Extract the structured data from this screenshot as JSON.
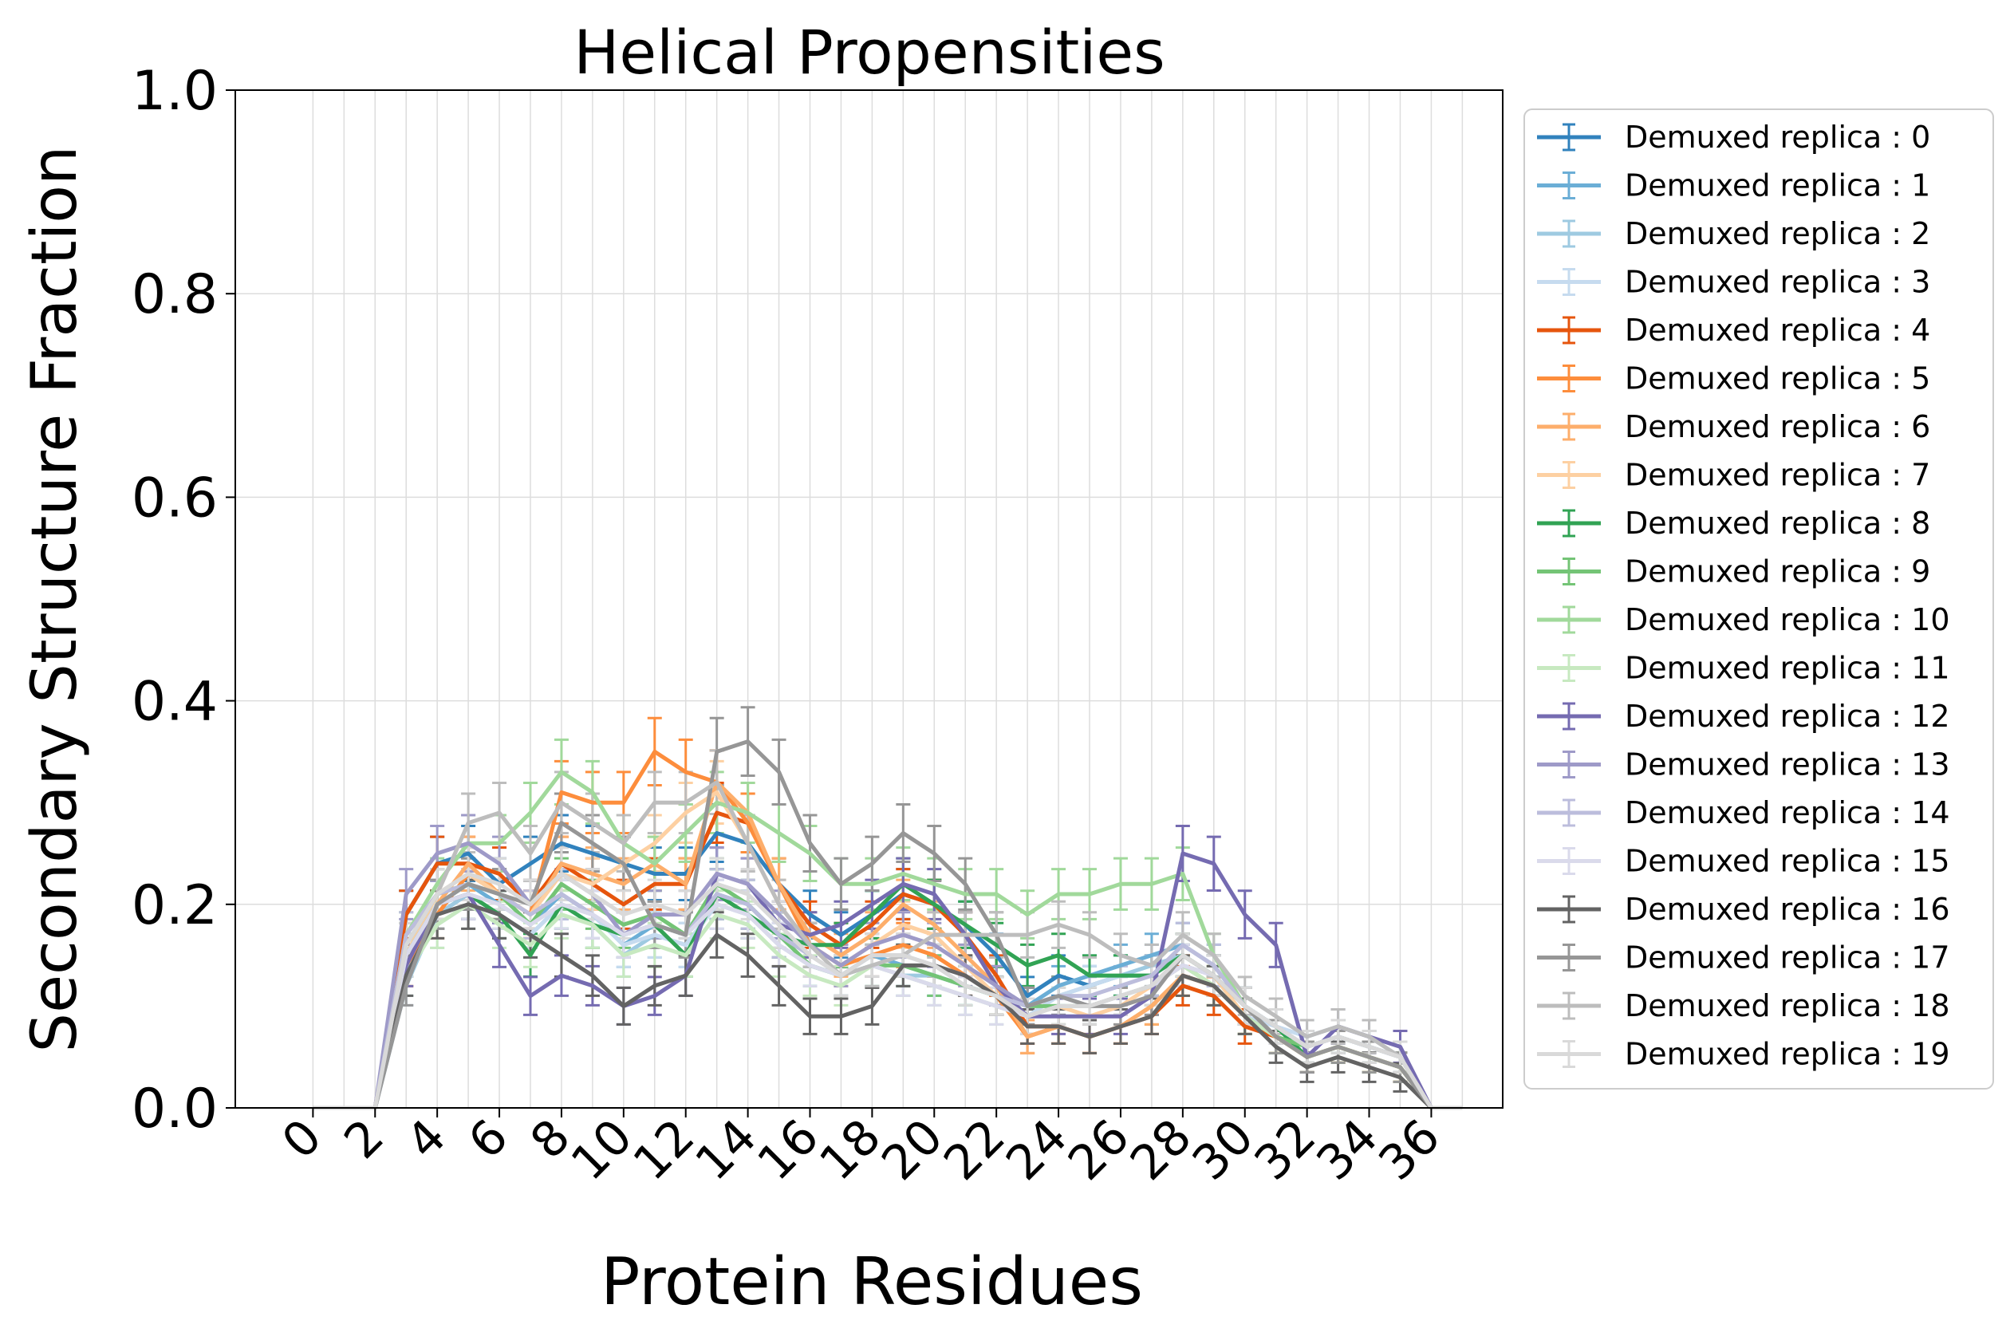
{
  "chart_data": {
    "type": "line",
    "title": "Helical Propensities",
    "xlabel": "Protein Residues",
    "ylabel": "Secondary Structure Fraction",
    "xlim": [
      -2.5,
      38.3
    ],
    "ylim": [
      0.0,
      1.0
    ],
    "x_ticks": [
      "0",
      "2",
      "4",
      "6",
      "8",
      "10",
      "12",
      "14",
      "16",
      "18",
      "20",
      "22",
      "24",
      "26",
      "28",
      "30",
      "32",
      "34",
      "36"
    ],
    "y_ticks": [
      "0.0",
      "0.2",
      "0.4",
      "0.6",
      "0.8",
      "1.0"
    ],
    "grid": true,
    "error_bars": true,
    "legend_position": "outside-right",
    "x": [
      0,
      1,
      2,
      3,
      4,
      5,
      6,
      7,
      8,
      9,
      10,
      11,
      12,
      13,
      14,
      15,
      16,
      17,
      18,
      19,
      20,
      21,
      22,
      23,
      24,
      25,
      26,
      27,
      28,
      29,
      30,
      31,
      32,
      33,
      34,
      35,
      36,
      37
    ],
    "series": [
      {
        "name": "Demuxed replica : 0",
        "color": "#3182bd",
        "values": [
          0,
          0,
          0,
          0.19,
          0.24,
          0.25,
          0.22,
          0.24,
          0.26,
          0.25,
          0.24,
          0.23,
          0.23,
          0.27,
          0.26,
          0.22,
          0.19,
          0.17,
          0.19,
          0.21,
          0.2,
          0.18,
          0.15,
          0.11,
          0.13,
          0.12,
          0.13,
          0.13,
          0.15,
          0.13,
          0.1,
          0.08,
          0.06,
          0.07,
          0.06,
          0.05,
          0,
          0
        ]
      },
      {
        "name": "Demuxed replica : 1",
        "color": "#6baed6",
        "values": [
          0,
          0,
          0,
          0.13,
          0.2,
          0.22,
          0.2,
          0.18,
          0.21,
          0.19,
          0.16,
          0.18,
          0.17,
          0.21,
          0.2,
          0.17,
          0.14,
          0.13,
          0.15,
          0.14,
          0.13,
          0.12,
          0.11,
          0.1,
          0.12,
          0.13,
          0.14,
          0.15,
          0.16,
          0.14,
          0.1,
          0.08,
          0.06,
          0.07,
          0.06,
          0.05,
          0,
          0
        ]
      },
      {
        "name": "Demuxed replica : 2",
        "color": "#9ecae1",
        "values": [
          0,
          0,
          0,
          0.12,
          0.19,
          0.21,
          0.19,
          0.17,
          0.2,
          0.18,
          0.15,
          0.17,
          0.16,
          0.2,
          0.19,
          0.16,
          0.14,
          0.13,
          0.14,
          0.13,
          0.13,
          0.12,
          0.11,
          0.1,
          0.11,
          0.12,
          0.13,
          0.14,
          0.15,
          0.13,
          0.09,
          0.07,
          0.06,
          0.07,
          0.06,
          0.05,
          0,
          0
        ]
      },
      {
        "name": "Demuxed replica : 3",
        "color": "#c6dbef",
        "values": [
          0,
          0,
          0,
          0.14,
          0.18,
          0.2,
          0.19,
          0.17,
          0.2,
          0.19,
          0.16,
          0.17,
          0.16,
          0.2,
          0.19,
          0.16,
          0.14,
          0.13,
          0.14,
          0.13,
          0.12,
          0.11,
          0.1,
          0.09,
          0.11,
          0.12,
          0.13,
          0.13,
          0.15,
          0.13,
          0.09,
          0.08,
          0.07,
          0.08,
          0.07,
          0.05,
          0,
          0
        ]
      },
      {
        "name": "Demuxed replica : 4",
        "color": "#e6550d",
        "values": [
          0,
          0,
          0,
          0.19,
          0.24,
          0.24,
          0.23,
          0.2,
          0.24,
          0.22,
          0.2,
          0.22,
          0.22,
          0.29,
          0.28,
          0.22,
          0.18,
          0.16,
          0.18,
          0.21,
          0.2,
          0.17,
          0.13,
          0.08,
          0.08,
          0.07,
          0.08,
          0.09,
          0.12,
          0.11,
          0.08,
          0.07,
          0.05,
          0.06,
          0.05,
          0.04,
          0,
          0
        ]
      },
      {
        "name": "Demuxed replica : 5",
        "color": "#fd8d3c",
        "values": [
          0,
          0,
          0,
          0.14,
          0.19,
          0.23,
          0.21,
          0.19,
          0.31,
          0.3,
          0.3,
          0.35,
          0.33,
          0.32,
          0.28,
          0.22,
          0.16,
          0.14,
          0.15,
          0.16,
          0.15,
          0.13,
          0.11,
          0.07,
          0.08,
          0.07,
          0.08,
          0.1,
          0.13,
          0.12,
          0.09,
          0.07,
          0.05,
          0.06,
          0.05,
          0.04,
          0,
          0
        ]
      },
      {
        "name": "Demuxed replica : 6",
        "color": "#fdae6b",
        "values": [
          0,
          0,
          0,
          0.14,
          0.2,
          0.24,
          0.21,
          0.19,
          0.24,
          0.23,
          0.22,
          0.24,
          0.22,
          0.32,
          0.29,
          0.22,
          0.17,
          0.15,
          0.17,
          0.2,
          0.18,
          0.15,
          0.12,
          0.07,
          0.08,
          0.07,
          0.08,
          0.1,
          0.13,
          0.12,
          0.09,
          0.07,
          0.05,
          0.06,
          0.05,
          0.04,
          0,
          0
        ]
      },
      {
        "name": "Demuxed replica : 7",
        "color": "#fdd0a2",
        "values": [
          0,
          0,
          0,
          0.15,
          0.21,
          0.23,
          0.21,
          0.19,
          0.23,
          0.22,
          0.24,
          0.26,
          0.29,
          0.31,
          0.26,
          0.2,
          0.16,
          0.14,
          0.16,
          0.18,
          0.17,
          0.14,
          0.11,
          0.09,
          0.1,
          0.09,
          0.1,
          0.12,
          0.15,
          0.13,
          0.09,
          0.07,
          0.06,
          0.07,
          0.06,
          0.05,
          0,
          0
        ]
      },
      {
        "name": "Demuxed replica : 8",
        "color": "#31a354",
        "values": [
          0,
          0,
          0,
          0.15,
          0.2,
          0.21,
          0.19,
          0.15,
          0.2,
          0.18,
          0.17,
          0.18,
          0.15,
          0.21,
          0.19,
          0.17,
          0.16,
          0.16,
          0.19,
          0.22,
          0.2,
          0.18,
          0.16,
          0.14,
          0.15,
          0.13,
          0.13,
          0.13,
          0.15,
          0.13,
          0.1,
          0.08,
          0.05,
          0.06,
          0.05,
          0.04,
          0,
          0
        ]
      },
      {
        "name": "Demuxed replica : 9",
        "color": "#74c476",
        "values": [
          0,
          0,
          0,
          0.16,
          0.21,
          0.22,
          0.21,
          0.18,
          0.22,
          0.2,
          0.18,
          0.19,
          0.17,
          0.22,
          0.2,
          0.17,
          0.14,
          0.13,
          0.14,
          0.14,
          0.13,
          0.12,
          0.11,
          0.1,
          0.1,
          0.1,
          0.11,
          0.12,
          0.14,
          0.12,
          0.09,
          0.07,
          0.06,
          0.07,
          0.06,
          0.05,
          0,
          0
        ]
      },
      {
        "name": "Demuxed replica : 10",
        "color": "#a1d99b",
        "values": [
          0,
          0,
          0,
          0.17,
          0.22,
          0.26,
          0.26,
          0.29,
          0.33,
          0.31,
          0.26,
          0.24,
          0.27,
          0.3,
          0.29,
          0.27,
          0.25,
          0.22,
          0.22,
          0.23,
          0.22,
          0.21,
          0.21,
          0.19,
          0.21,
          0.21,
          0.22,
          0.22,
          0.23,
          0.15,
          0.1,
          0.08,
          0.06,
          0.07,
          0.06,
          0.05,
          0,
          0
        ]
      },
      {
        "name": "Demuxed replica : 11",
        "color": "#c7e9c0",
        "values": [
          0,
          0,
          0,
          0.13,
          0.18,
          0.2,
          0.18,
          0.16,
          0.19,
          0.18,
          0.15,
          0.16,
          0.15,
          0.19,
          0.18,
          0.15,
          0.13,
          0.12,
          0.14,
          0.13,
          0.12,
          0.11,
          0.1,
          0.09,
          0.1,
          0.1,
          0.11,
          0.12,
          0.14,
          0.12,
          0.09,
          0.07,
          0.05,
          0.06,
          0.05,
          0.04,
          0,
          0
        ]
      },
      {
        "name": "Demuxed replica : 12",
        "color": "#756bb1",
        "values": [
          0,
          0,
          0,
          0.14,
          0.2,
          0.21,
          0.16,
          0.11,
          0.13,
          0.12,
          0.1,
          0.11,
          0.13,
          0.23,
          0.22,
          0.18,
          0.17,
          0.18,
          0.2,
          0.22,
          0.21,
          0.17,
          0.12,
          0.09,
          0.09,
          0.09,
          0.09,
          0.11,
          0.25,
          0.24,
          0.19,
          0.16,
          0.05,
          0.08,
          0.07,
          0.06,
          0,
          0
        ]
      },
      {
        "name": "Demuxed replica : 13",
        "color": "#9e9ac8",
        "values": [
          0,
          0,
          0,
          0.21,
          0.25,
          0.26,
          0.24,
          0.2,
          0.23,
          0.21,
          0.17,
          0.19,
          0.19,
          0.23,
          0.22,
          0.19,
          0.16,
          0.14,
          0.16,
          0.17,
          0.16,
          0.14,
          0.12,
          0.1,
          0.11,
          0.1,
          0.11,
          0.12,
          0.14,
          0.13,
          0.1,
          0.08,
          0.06,
          0.07,
          0.06,
          0.05,
          0,
          0
        ]
      },
      {
        "name": "Demuxed replica : 14",
        "color": "#bcbddc",
        "values": [
          0,
          0,
          0,
          0.17,
          0.21,
          0.22,
          0.21,
          0.19,
          0.21,
          0.19,
          0.17,
          0.18,
          0.17,
          0.21,
          0.2,
          0.17,
          0.15,
          0.13,
          0.15,
          0.15,
          0.14,
          0.13,
          0.11,
          0.1,
          0.11,
          0.11,
          0.12,
          0.13,
          0.16,
          0.14,
          0.1,
          0.08,
          0.06,
          0.07,
          0.06,
          0.05,
          0,
          0
        ]
      },
      {
        "name": "Demuxed replica : 15",
        "color": "#dadaeb",
        "values": [
          0,
          0,
          0,
          0.15,
          0.2,
          0.21,
          0.2,
          0.18,
          0.2,
          0.19,
          0.17,
          0.18,
          0.17,
          0.2,
          0.19,
          0.16,
          0.14,
          0.13,
          0.14,
          0.13,
          0.12,
          0.11,
          0.1,
          0.09,
          0.1,
          0.1,
          0.11,
          0.12,
          0.14,
          0.13,
          0.1,
          0.08,
          0.06,
          0.07,
          0.06,
          0.05,
          0,
          0
        ]
      },
      {
        "name": "Demuxed replica : 16",
        "color": "#636363",
        "values": [
          0,
          0,
          0,
          0.13,
          0.19,
          0.2,
          0.19,
          0.17,
          0.15,
          0.13,
          0.1,
          0.12,
          0.13,
          0.17,
          0.15,
          0.12,
          0.09,
          0.09,
          0.1,
          0.14,
          0.14,
          0.13,
          0.11,
          0.08,
          0.08,
          0.07,
          0.08,
          0.09,
          0.13,
          0.12,
          0.09,
          0.06,
          0.04,
          0.05,
          0.04,
          0.03,
          0,
          0
        ]
      },
      {
        "name": "Demuxed replica : 17",
        "color": "#969696",
        "values": [
          0,
          0,
          0,
          0.12,
          0.2,
          0.22,
          0.21,
          0.2,
          0.28,
          0.26,
          0.24,
          0.18,
          0.17,
          0.35,
          0.36,
          0.33,
          0.26,
          0.22,
          0.24,
          0.27,
          0.25,
          0.22,
          0.17,
          0.1,
          0.11,
          0.1,
          0.1,
          0.11,
          0.15,
          0.13,
          0.1,
          0.07,
          0.05,
          0.06,
          0.05,
          0.04,
          0,
          0
        ]
      },
      {
        "name": "Demuxed replica : 18",
        "color": "#bdbdbd",
        "values": [
          0,
          0,
          0,
          0.16,
          0.21,
          0.28,
          0.29,
          0.25,
          0.3,
          0.28,
          0.26,
          0.3,
          0.3,
          0.32,
          0.26,
          0.2,
          0.16,
          0.13,
          0.14,
          0.15,
          0.17,
          0.17,
          0.17,
          0.17,
          0.18,
          0.17,
          0.15,
          0.14,
          0.17,
          0.15,
          0.11,
          0.09,
          0.07,
          0.08,
          0.07,
          0.05,
          0,
          0
        ]
      },
      {
        "name": "Demuxed replica : 19",
        "color": "#d9d9d9",
        "values": [
          0,
          0,
          0,
          0.16,
          0.21,
          0.23,
          0.22,
          0.2,
          0.23,
          0.21,
          0.19,
          0.2,
          0.19,
          0.22,
          0.21,
          0.18,
          0.15,
          0.13,
          0.15,
          0.15,
          0.14,
          0.12,
          0.11,
          0.09,
          0.1,
          0.1,
          0.11,
          0.12,
          0.15,
          0.13,
          0.1,
          0.08,
          0.06,
          0.07,
          0.06,
          0.05,
          0,
          0
        ]
      }
    ]
  }
}
